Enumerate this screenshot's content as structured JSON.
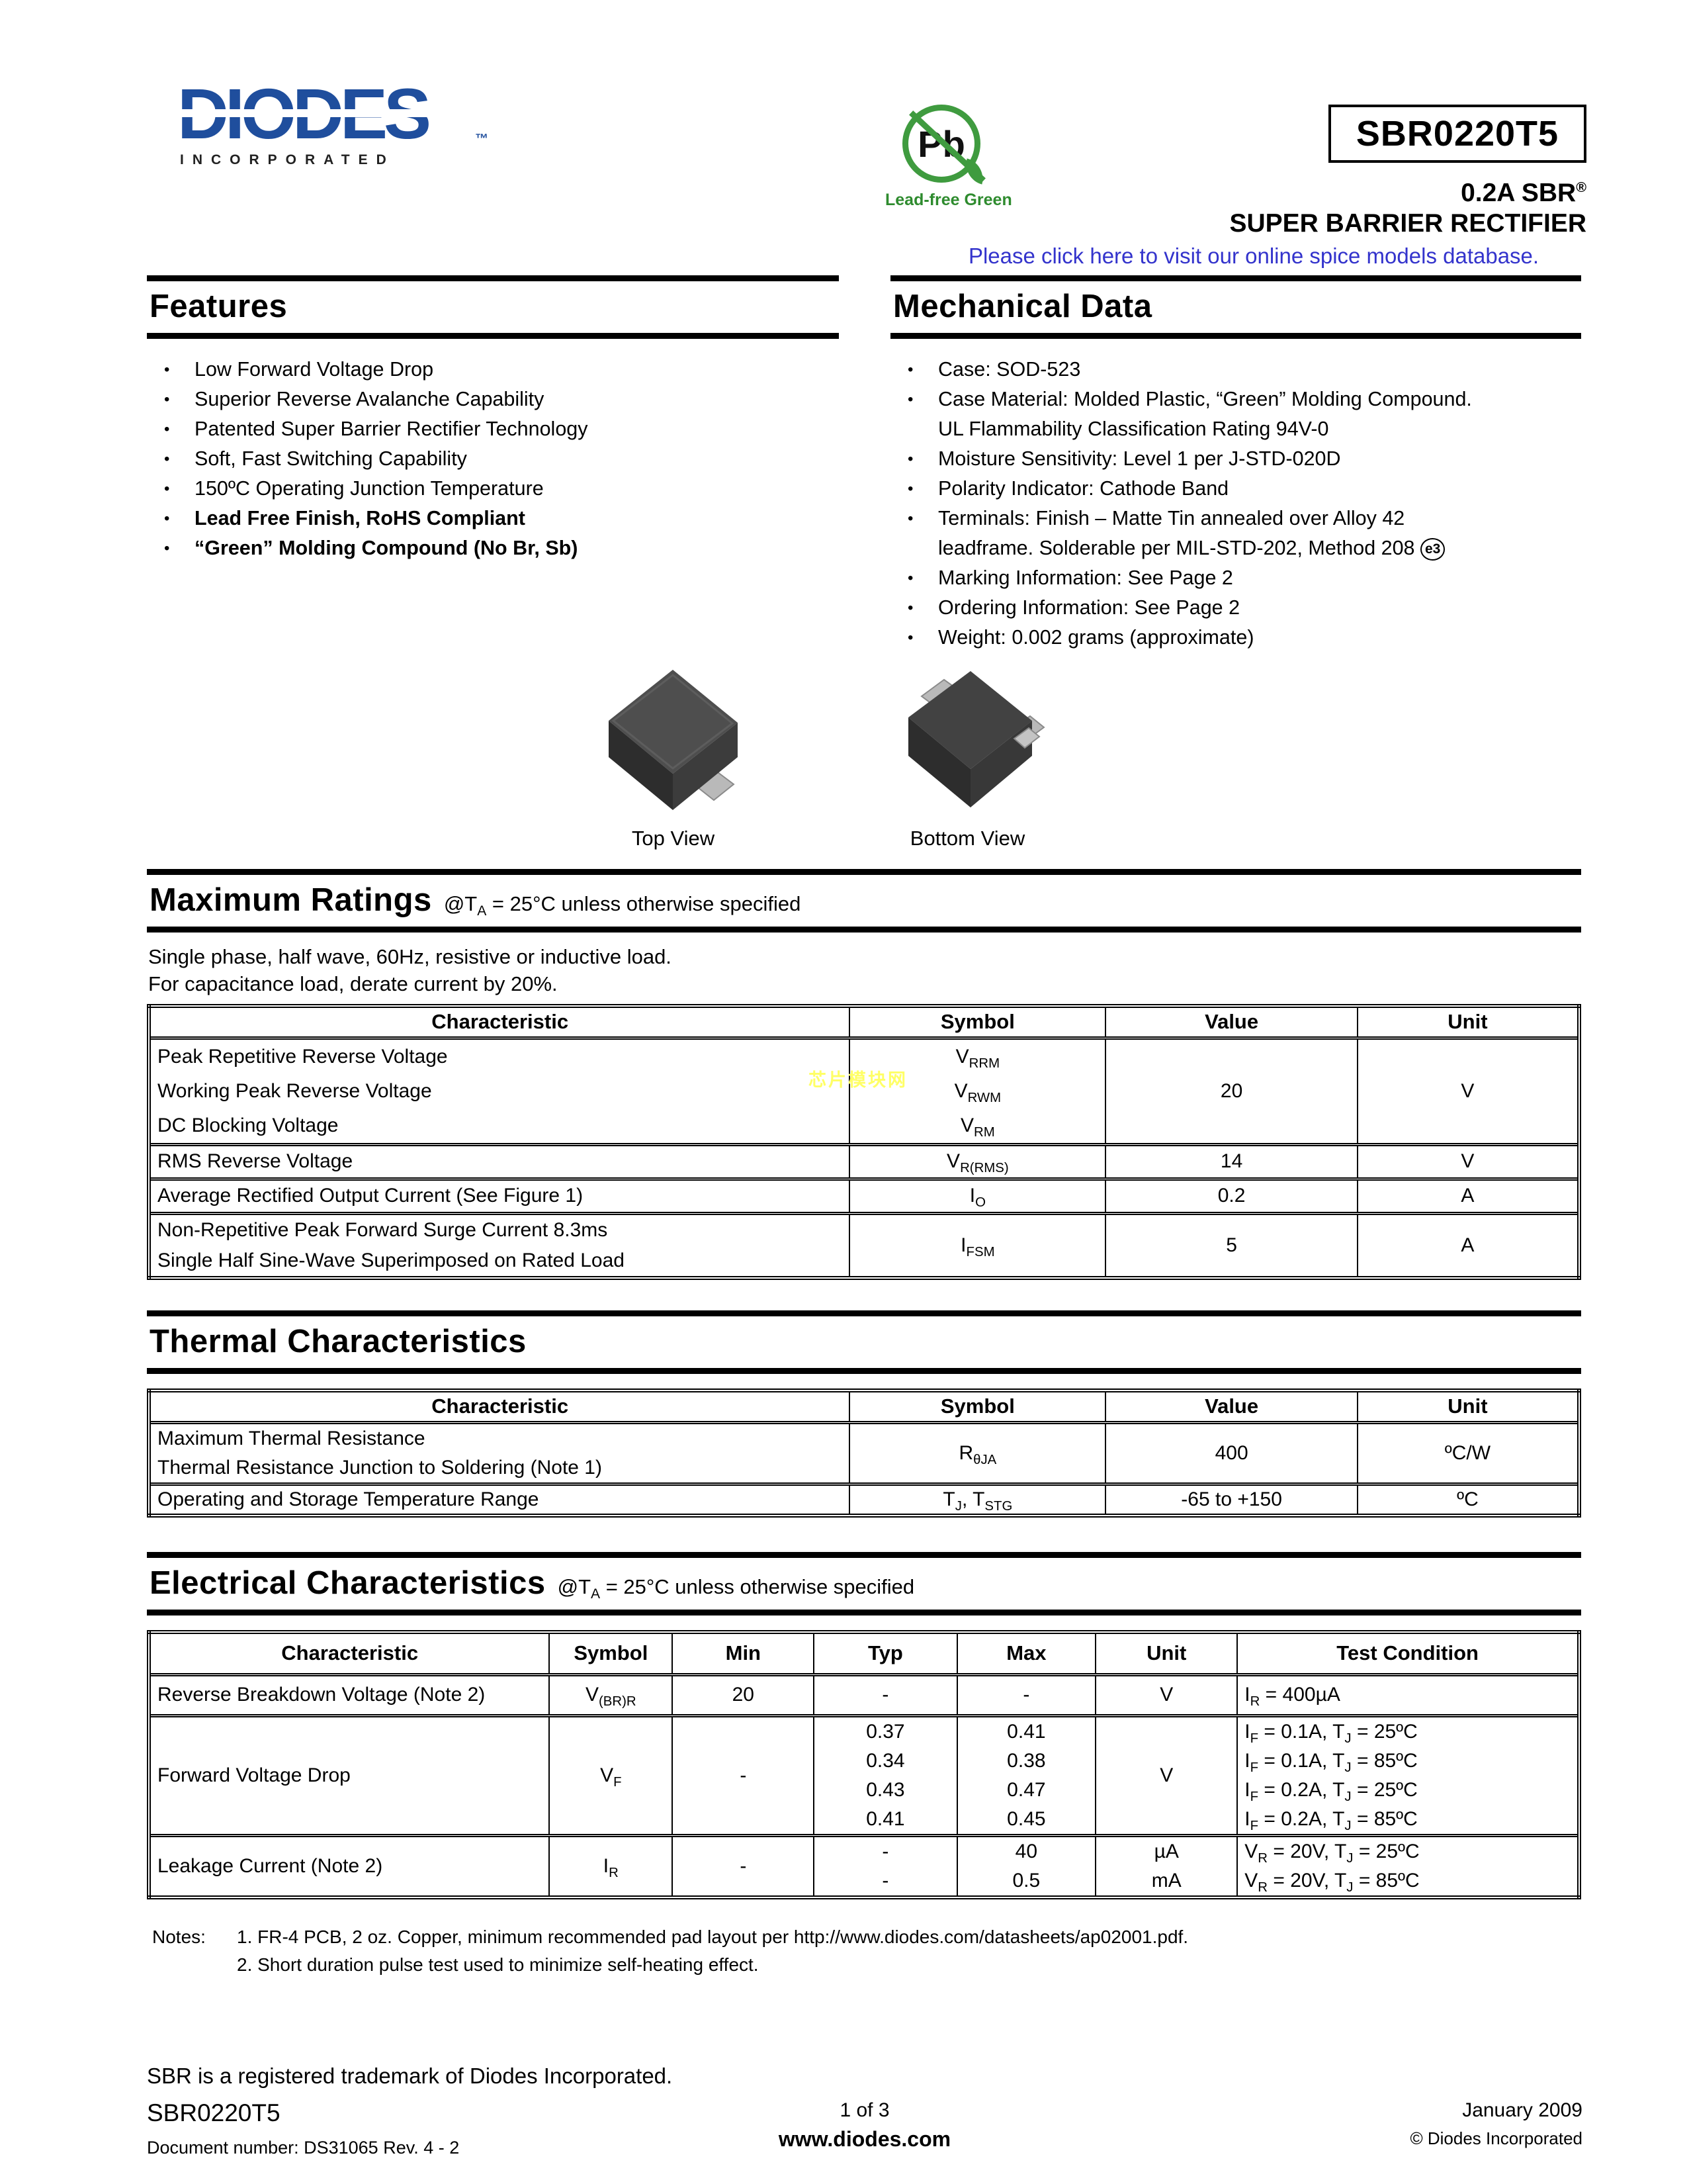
{
  "header": {
    "brand": {
      "name": "DIODES",
      "tm": "™",
      "sub": "INCORPORATED"
    },
    "pb_badge": {
      "symbol": "Pb",
      "label": "Lead-free Green"
    },
    "part_number": "SBR0220T5",
    "subtitle_line1": "0.2A SBR",
    "subtitle_reg": "®",
    "subtitle_line2": "SUPER BARRIER RECTIFIER",
    "spice_link": "Please click here to visit our online spice models database."
  },
  "features": {
    "title": "Features",
    "items": [
      {
        "text": "Low Forward Voltage Drop",
        "bold": false
      },
      {
        "text": "Superior Reverse Avalanche Capability",
        "bold": false
      },
      {
        "text": "Patented Super Barrier Rectifier Technology",
        "bold": false
      },
      {
        "text": "Soft, Fast Switching Capability",
        "bold": false
      },
      {
        "text": "150ºC Operating Junction Temperature",
        "bold": false
      },
      {
        "text": "Lead Free Finish, RoHS Compliant",
        "bold": true
      },
      {
        "text": "“Green” Molding Compound (No Br, Sb)",
        "bold": true
      }
    ]
  },
  "mechanical": {
    "title": "Mechanical Data",
    "items": [
      {
        "text": "Case: SOD-523",
        "bold": false
      },
      {
        "text": "Case Material:  Molded Plastic, “Green” Molding Compound.\nUL Flammability Classification Rating 94V-0",
        "bold": false
      },
      {
        "text": "Moisture Sensitivity: Level 1 per J-STD-020D",
        "bold": false
      },
      {
        "text": "Polarity Indicator: Cathode Band",
        "bold": false
      },
      {
        "text": "Terminals: Finish – Matte Tin annealed over Alloy 42\nleadframe. Solderable per MIL-STD-202, Method 208 [e3]",
        "bold": false
      },
      {
        "text": "Marking Information: See Page 2",
        "bold": false
      },
      {
        "text": "Ordering Information: See Page 2",
        "bold": false
      },
      {
        "text": "Weight: 0.002 grams (approximate)",
        "bold": false
      }
    ]
  },
  "package_views": {
    "top_label": "Top View",
    "bottom_label": "Bottom View"
  },
  "max_ratings": {
    "title": "Maximum Ratings",
    "subtitle": "@T~A~ = 25°C unless otherwise specified",
    "preface": "Single phase, half wave, 60Hz, resistive or inductive load.\nFor capacitance load, derate current by 20%.",
    "table": {
      "columns": [
        "Characteristic",
        "Symbol",
        "Value",
        "Unit"
      ],
      "rows": [
        [
          "Peak Repetitive Reverse Voltage\nWorking Peak Reverse Voltage\nDC Blocking Voltage",
          "V~RRM~\nV~RWM~\nV~RM~",
          "20",
          "V"
        ],
        [
          "RMS Reverse Voltage",
          "V~R(RMS)~",
          "14",
          "V"
        ],
        [
          "Average Rectified Output Current  (See Figure 1)",
          "I~O~",
          "0.2",
          "A"
        ],
        [
          "Non-Repetitive Peak Forward Surge Current 8.3ms\nSingle Half Sine-Wave Superimposed on Rated Load",
          "I~FSM~",
          "5",
          "A"
        ]
      ]
    }
  },
  "thermal": {
    "title": "Thermal Characteristics",
    "table": {
      "columns": [
        "Characteristic",
        "Symbol",
        "Value",
        "Unit"
      ],
      "rows": [
        [
          "Maximum Thermal Resistance\nThermal Resistance Junction to Soldering (Note 1)",
          "R~θJA~",
          "400",
          "ºC/W"
        ],
        [
          "Operating and Storage Temperature Range",
          "T~J~, T~STG~",
          "-65 to +150",
          "ºC"
        ]
      ]
    }
  },
  "electrical": {
    "title": "Electrical Characteristics",
    "subtitle": "@T~A~ = 25°C unless otherwise specified",
    "table": {
      "columns": [
        "Characteristic",
        "Symbol",
        "Min",
        "Typ",
        "Max",
        "Unit",
        "Test Condition"
      ],
      "rows": [
        [
          "Reverse Breakdown Voltage (Note 2)",
          "V~(BR)R~",
          "20",
          "-",
          "-",
          "V",
          "I~R~ = 400µA"
        ],
        [
          "Forward Voltage Drop",
          "V~F~",
          "-",
          "0.37\n0.34\n0.43\n0.41",
          "0.41\n0.38\n0.47\n0.45",
          "V",
          "I~F~ = 0.1A, T~J~ = 25ºC\nI~F~ = 0.1A, T~J~ = 85ºC\nI~F~ = 0.2A, T~J~ = 25ºC\nI~F~ = 0.2A, T~J~ = 85ºC"
        ],
        [
          "Leakage Current (Note 2)",
          "I~R~",
          "-",
          "-\n-",
          "40\n0.5",
          "µA\nmA",
          "V~R~ = 20V, T~J~ = 25ºC\nV~R~ = 20V, T~J~ = 85ºC"
        ]
      ]
    }
  },
  "notes": {
    "label": "Notes:",
    "lines": "1. FR-4 PCB, 2 oz. Copper, minimum recommended pad layout per http://www.diodes.com/datasheets/ap02001.pdf.\n2. Short duration pulse test used to minimize self-heating effect."
  },
  "footer": {
    "trademark_line": "SBR is a registered trademark of Diodes Incorporated.",
    "part_number": "SBR0220T5",
    "document_number": "Document number: DS31065 Rev. 4 - 2",
    "page_indicator": "1 of 3",
    "website": "www.diodes.com",
    "date": "January 2009",
    "copyright": "© Diodes Incorporated"
  },
  "watermark": "芯片模块网",
  "colors": {
    "brand_blue": "#1f4e9d",
    "link_blue": "#3333cc",
    "pb_green": "#3f9b3f",
    "watermark_yellow": "#ffff66"
  }
}
